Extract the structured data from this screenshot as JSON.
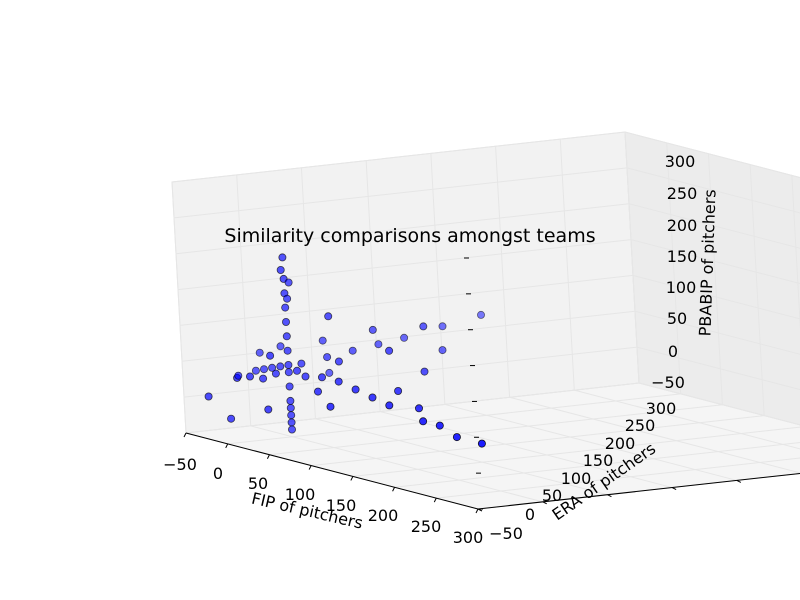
{
  "chart_data": {
    "type": "scatter",
    "projection": "3d",
    "title": "Similarity comparisons amongst teams",
    "xlabel": "FIP of pitchers",
    "ylabel": "ERA of pitchers",
    "zlabel": "PBABIP of pitchers",
    "xlim": [
      -50,
      300
    ],
    "ylim": [
      -50,
      300
    ],
    "zlim": [
      -50,
      300
    ],
    "xticks": [
      "−50",
      "0",
      "50",
      "100",
      "150",
      "200",
      "250",
      "300"
    ],
    "yticks": [
      "−50",
      "0",
      "50",
      "100",
      "150",
      "200",
      "250",
      "300"
    ],
    "zticks": [
      "−50",
      "0",
      "50",
      "100",
      "150",
      "200",
      "250",
      "300"
    ],
    "grid": true,
    "marker_color": "#0000ff",
    "marker_edge": "#000000",
    "series": [
      {
        "points": [
          [
            0,
            0,
            200
          ],
          [
            0,
            0,
            170
          ],
          [
            0,
            0,
            150
          ],
          [
            0,
            0,
            130
          ],
          [
            0,
            0,
            110
          ],
          [
            0,
            0,
            90
          ],
          [
            0,
            0,
            70
          ],
          [
            0,
            0,
            50
          ],
          [
            0,
            0,
            40
          ],
          [
            0,
            0,
            20
          ],
          [
            0,
            0,
            0
          ],
          [
            0,
            0,
            -10
          ],
          [
            0,
            0,
            -20
          ],
          [
            0,
            0,
            -30
          ],
          [
            0,
            0,
            -40
          ],
          [
            -40,
            0,
            30
          ],
          [
            -30,
            0,
            35
          ],
          [
            -20,
            0,
            40
          ],
          [
            -10,
            0,
            45
          ],
          [
            10,
            0,
            45
          ],
          [
            20,
            0,
            40
          ],
          [
            40,
            0,
            45
          ],
          [
            60,
            0,
            45
          ],
          [
            80,
            0,
            40
          ],
          [
            100,
            0,
            35
          ],
          [
            120,
            0,
            30
          ],
          [
            160,
            0,
            20
          ],
          [
            200,
            0,
            10
          ],
          [
            230,
            0,
            10
          ],
          [
            0,
            -40,
            40
          ],
          [
            0,
            -30,
            40
          ],
          [
            0,
            -20,
            35
          ],
          [
            0,
            -10,
            40
          ],
          [
            0,
            10,
            50
          ],
          [
            0,
            30,
            55
          ],
          [
            0,
            50,
            60
          ],
          [
            0,
            70,
            65
          ],
          [
            0,
            90,
            70
          ],
          [
            0,
            120,
            80
          ],
          [
            -30,
            -20,
            30
          ],
          [
            30,
            20,
            60
          ],
          [
            50,
            -10,
            30
          ],
          [
            -20,
            40,
            70
          ],
          [
            60,
            40,
            80
          ],
          [
            20,
            -30,
            0
          ],
          [
            -10,
            -40,
            -20
          ],
          [
            80,
            -20,
            20
          ],
          [
            140,
            10,
            30
          ],
          [
            -40,
            20,
            60
          ],
          [
            10,
            60,
            90
          ],
          [
            40,
            80,
            100
          ],
          [
            -20,
            -50,
            10
          ],
          [
            100,
            20,
            40
          ],
          [
            180,
            0,
            20
          ],
          [
            -50,
            10,
            50
          ],
          [
            0,
            150,
            90
          ],
          [
            30,
            100,
            60
          ],
          [
            70,
            60,
            50
          ],
          [
            -30,
            50,
            20
          ],
          [
            10,
            -20,
            70
          ],
          [
            20,
            20,
            120
          ],
          [
            -10,
            10,
            160
          ],
          [
            5,
            -5,
            185
          ],
          [
            -5,
            5,
            140
          ]
        ]
      }
    ]
  }
}
